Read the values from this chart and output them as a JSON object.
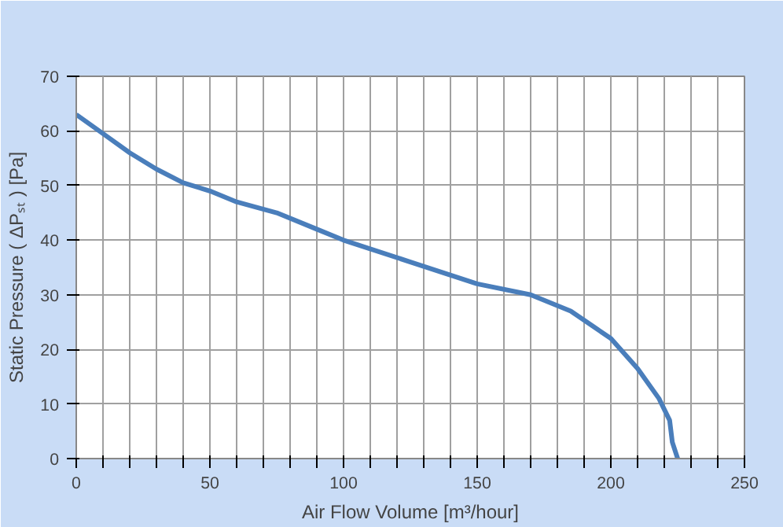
{
  "chart_data": {
    "type": "line",
    "xlabel": "Air Flow Volume [m³/hour]",
    "ylabel": "Static Pressure ( ΔPₛₜ ) [Pa]",
    "x": [
      0,
      10,
      20,
      30,
      40,
      50,
      60,
      75,
      90,
      100,
      125,
      150,
      170,
      185,
      200,
      210,
      218,
      222,
      223,
      225
    ],
    "series": [
      {
        "color": "#4a7ebb",
        "values": [
          63,
          59.5,
          56,
          53,
          50.5,
          49,
          47,
          45,
          42,
          40,
          36,
          32,
          30,
          27,
          22,
          16.5,
          11,
          7,
          3,
          0
        ]
      }
    ],
    "xlim": [
      0,
      250
    ],
    "ylim": [
      0,
      70
    ],
    "xticks": [
      0,
      {
        "value": 10,
        "label": null
      },
      {
        "value": 20,
        "label": null
      },
      {
        "value": 30,
        "label": null
      },
      {
        "value": 40,
        "label": null
      },
      50,
      {
        "value": 60,
        "label": null
      },
      {
        "value": 70,
        "label": null
      },
      {
        "value": 80,
        "label": null
      },
      {
        "value": 90,
        "label": null
      },
      100,
      {
        "value": 110,
        "label": null
      },
      {
        "value": 120,
        "label": null
      },
      {
        "value": 130,
        "label": null
      },
      {
        "value": 140,
        "label": null
      },
      150,
      {
        "value": 160,
        "label": null
      },
      {
        "value": 170,
        "label": null
      },
      {
        "value": 180,
        "label": null
      },
      {
        "value": 190,
        "label": null
      },
      200,
      {
        "value": 210,
        "label": null
      },
      {
        "value": 220,
        "label": null
      },
      {
        "value": 230,
        "label": null
      },
      {
        "value": 240,
        "label": null
      },
      250
    ],
    "yticks": [
      0,
      10,
      20,
      30,
      40,
      50,
      60,
      70
    ],
    "grid": true,
    "marker": "none",
    "line_style": "solid"
  }
}
